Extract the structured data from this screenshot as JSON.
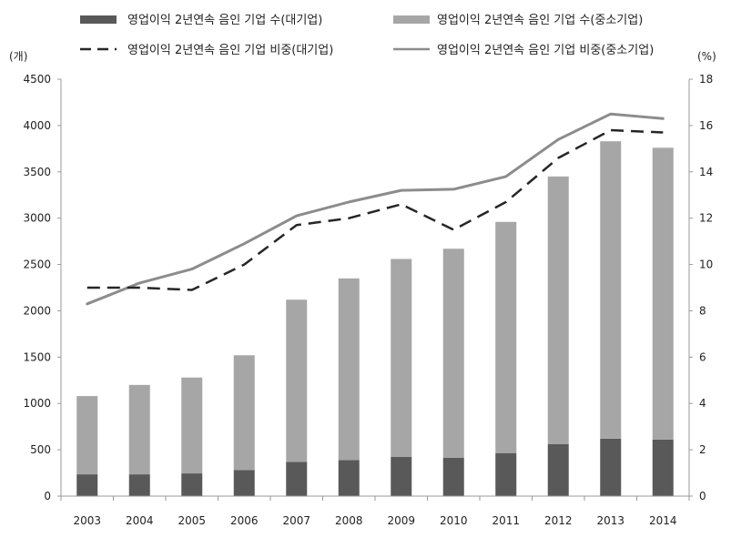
{
  "chart_data": {
    "type": "bar",
    "stacked": true,
    "categories": [
      "2003",
      "2004",
      "2005",
      "2006",
      "2007",
      "2008",
      "2009",
      "2010",
      "2011",
      "2012",
      "2013",
      "2014"
    ],
    "series": [
      {
        "name": "영업이익 2년연속 음인 기업 수(대기업)",
        "kind": "bar",
        "axis": "left",
        "color": "#595959",
        "values": [
          235,
          235,
          245,
          280,
          370,
          390,
          425,
          415,
          465,
          560,
          620,
          610
        ]
      },
      {
        "name": "영업이익 2년연속 음인 기업 수(중소기업)",
        "kind": "bar",
        "axis": "left",
        "color": "#a6a6a6",
        "values": [
          845,
          965,
          1035,
          1240,
          1750,
          1960,
          2135,
          2255,
          2495,
          2890,
          3210,
          3150
        ]
      },
      {
        "name": "영업이익 2년연속 음인 기업 비중(대기업)",
        "kind": "line",
        "style": "dashed",
        "axis": "right",
        "color": "#262626",
        "values": [
          9.0,
          9.0,
          8.9,
          10.0,
          11.7,
          12.0,
          12.6,
          11.5,
          12.7,
          14.6,
          15.8,
          15.7
        ]
      },
      {
        "name": "영업이익 2년연속 음인 기업 비중(중소기업)",
        "kind": "line",
        "style": "solid",
        "axis": "right",
        "color": "#8c8c8c",
        "values": [
          8.3,
          9.2,
          9.8,
          10.9,
          12.1,
          12.7,
          13.2,
          13.25,
          13.8,
          15.4,
          16.5,
          16.3
        ]
      }
    ],
    "y_left": {
      "unit": "(개)",
      "min": 0,
      "max": 4500,
      "step": 500,
      "ticks": [
        "0",
        "500",
        "1000",
        "1500",
        "2000",
        "2500",
        "3000",
        "3500",
        "4000",
        "4500"
      ]
    },
    "y_right": {
      "unit": "(%)",
      "min": 0,
      "max": 18,
      "step": 2,
      "ticks": [
        "0",
        "2",
        "4",
        "6",
        "8",
        "10",
        "12",
        "14",
        "16",
        "18"
      ]
    },
    "grid": false,
    "legend_position": "top"
  }
}
